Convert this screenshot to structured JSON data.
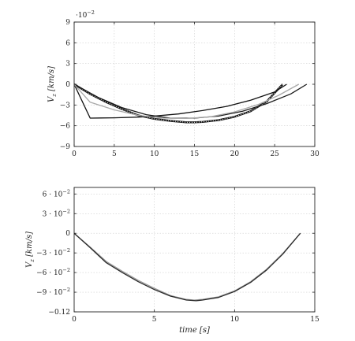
{
  "chart_data": [
    {
      "type": "line",
      "ylabel": "V_z [km/s]",
      "ylabel_main": "V",
      "ylabel_sub": "z",
      "ylabel_unit": "[km/s]",
      "xlabel": "",
      "y_scale_label": "·10",
      "y_scale_exp": "−2",
      "xlim": [
        0,
        30
      ],
      "ylim": [
        -9,
        9
      ],
      "xticks": [
        0,
        5,
        10,
        15,
        20,
        25,
        30
      ],
      "xtick_labels": [
        "0",
        "5",
        "10",
        "15",
        "20",
        "25",
        "30"
      ],
      "yticks": [
        -9,
        -6,
        -3,
        0,
        3,
        6,
        9
      ],
      "ytick_labels": [
        "−9",
        "−6",
        "−3",
        "0",
        "3",
        "6",
        "9"
      ],
      "grid": true,
      "series": [
        {
          "color": "#1a1a1a",
          "style": "dotted-thick",
          "x": [
            0,
            2,
            4,
            6,
            8,
            10,
            12,
            14,
            15,
            16,
            18,
            20,
            22,
            24,
            26
          ],
          "y": [
            0,
            -1.4,
            -2.6,
            -3.6,
            -4.5,
            -5.0,
            -5.3,
            -5.5,
            -5.5,
            -5.45,
            -5.2,
            -4.7,
            -3.9,
            -2.5,
            0
          ]
        },
        {
          "color": "#1a1a1a",
          "style": "solid",
          "x": [
            0,
            3,
            6,
            9,
            12,
            15,
            18,
            21,
            24,
            27,
            29
          ],
          "y": [
            0,
            -1.9,
            -3.4,
            -4.4,
            -4.9,
            -4.9,
            -4.6,
            -3.9,
            -2.8,
            -1.4,
            0
          ]
        },
        {
          "color": "#111111",
          "style": "solid",
          "x": [
            0,
            2,
            5,
            8,
            10,
            13,
            16,
            19,
            22,
            25,
            26.5
          ],
          "y": [
            0,
            -4.9,
            -4.85,
            -4.75,
            -4.6,
            -4.3,
            -3.8,
            -3.2,
            -2.3,
            -1.1,
            0
          ]
        },
        {
          "color": "#a8a8a8",
          "style": "solid",
          "x": [
            0,
            2,
            5,
            8,
            11,
            14,
            17,
            20,
            23,
            25.5,
            28
          ],
          "y": [
            0,
            -2.6,
            -3.7,
            -4.5,
            -4.9,
            -4.95,
            -4.7,
            -4.0,
            -2.9,
            -1.6,
            0
          ]
        }
      ]
    },
    {
      "type": "line",
      "ylabel": "V_z [km/s]",
      "ylabel_main": "V",
      "ylabel_sub": "z",
      "ylabel_unit": "[km/s]",
      "xlabel": "time [s]",
      "xlabel_main": "time",
      "xlabel_unit": "[s]",
      "xlim": [
        0,
        15
      ],
      "ylim": [
        -0.12,
        0.07
      ],
      "xticks": [
        0,
        5,
        10,
        15
      ],
      "xtick_labels": [
        "0",
        "5",
        "10",
        "15"
      ],
      "yticks": [
        -0.12,
        -0.09,
        -0.06,
        -0.03,
        0,
        0.03,
        0.06
      ],
      "ytick_labels": [
        {
          "base": "−0.12",
          "exp": ""
        },
        {
          "base": "−9 · 10",
          "exp": "−2"
        },
        {
          "base": "−6 · 10",
          "exp": "−2"
        },
        {
          "base": "−3 · 10",
          "exp": "−2"
        },
        {
          "base": "0",
          "exp": ""
        },
        {
          "base": "3 · 10",
          "exp": "−2"
        },
        {
          "base": "6 · 10",
          "exp": "−2"
        }
      ],
      "grid": true,
      "series": [
        {
          "color": "#9a9a9a",
          "style": "solid",
          "x": [
            0,
            1,
            2,
            3,
            4,
            5,
            6,
            7,
            7.5,
            8,
            9,
            10,
            11,
            12,
            13,
            14.1
          ],
          "y": [
            0,
            -0.021,
            -0.043,
            -0.058,
            -0.072,
            -0.084,
            -0.095,
            -0.101,
            -0.102,
            -0.101,
            -0.097,
            -0.088,
            -0.074,
            -0.055,
            -0.031,
            0
          ]
        },
        {
          "color": "#2a2a2a",
          "style": "solid",
          "x": [
            0,
            1,
            2,
            3,
            4,
            5,
            6,
            7,
            7.6,
            8,
            9,
            10,
            11,
            12,
            13,
            14.1
          ],
          "y": [
            0,
            -0.022,
            -0.045,
            -0.06,
            -0.074,
            -0.086,
            -0.096,
            -0.102,
            -0.103,
            -0.102,
            -0.098,
            -0.089,
            -0.075,
            -0.056,
            -0.032,
            0
          ]
        }
      ]
    }
  ]
}
